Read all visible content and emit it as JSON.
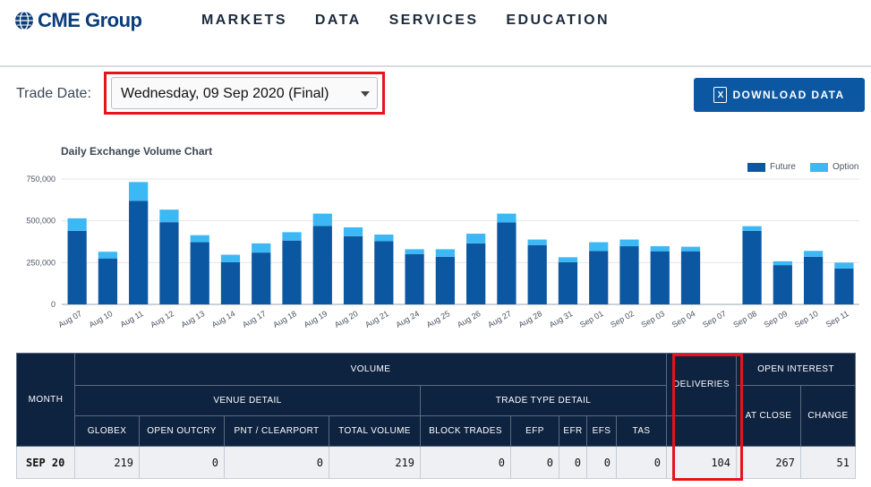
{
  "header": {
    "brand": "CME Group",
    "nav": [
      "MARKETS",
      "DATA",
      "SERVICES",
      "EDUCATION"
    ]
  },
  "trade_date": {
    "label": "Trade Date:",
    "selected": "Wednesday, 09 Sep 2020 (Final)"
  },
  "download": {
    "label": "DOWNLOAD DATA"
  },
  "colors": {
    "future": "#0c57a2",
    "option": "#3cb8f5",
    "header_bg": "#0e2340",
    "highlight": "#e3141b"
  },
  "chart_data": {
    "type": "bar",
    "title": "Daily Exchange Volume Chart",
    "stacked": true,
    "categories": [
      "Aug 07",
      "Aug 10",
      "Aug 11",
      "Aug 12",
      "Aug 13",
      "Aug 14",
      "Aug 17",
      "Aug 18",
      "Aug 19",
      "Aug 20",
      "Aug 21",
      "Aug 24",
      "Aug 25",
      "Aug 26",
      "Aug 27",
      "Aug 28",
      "Aug 31",
      "Sep 01",
      "Sep 02",
      "Sep 03",
      "Sep 04",
      "Sep 07",
      "Sep 08",
      "Sep 09",
      "Sep 10",
      "Sep 11"
    ],
    "series": [
      {
        "name": "Future",
        "values": [
          440000,
          275000,
          620000,
          492000,
          372000,
          252000,
          310000,
          382000,
          470000,
          408000,
          378000,
          300000,
          285000,
          365000,
          490000,
          355000,
          252000,
          320000,
          348000,
          318000,
          318000,
          0,
          440000,
          235000,
          285000,
          215000
        ]
      },
      {
        "name": "Option",
        "values": [
          75000,
          40000,
          112000,
          75000,
          42000,
          45000,
          55000,
          50000,
          73000,
          53000,
          40000,
          30000,
          45000,
          58000,
          53000,
          33000,
          30000,
          52000,
          40000,
          30000,
          27000,
          0,
          28000,
          23000,
          35000,
          35000
        ]
      }
    ],
    "yticks": [
      "0",
      "250,000",
      "500,000",
      "750,000"
    ],
    "ylim": [
      0,
      750000
    ],
    "legend_position": "top-right",
    "grid": true
  },
  "table": {
    "group_headers": {
      "month": "MONTH",
      "volume": "VOLUME",
      "venue_detail": "VENUE DETAIL",
      "trade_type_detail": "TRADE TYPE DETAIL",
      "deliveries": "DELIVERIES",
      "open_interest": "OPEN INTEREST"
    },
    "columns": [
      "GLOBEX",
      "OPEN OUTCRY",
      "PNT / CLEARPORT",
      "TOTAL VOLUME",
      "BLOCK TRADES",
      "EFP",
      "EFR",
      "EFS",
      "TAS",
      "AT CLOSE",
      "CHANGE"
    ],
    "row": {
      "month": "SEP 20",
      "globex": "219",
      "open_outcry": "0",
      "pnt": "0",
      "total_volume": "219",
      "block_trades": "0",
      "efp": "0",
      "efr": "0",
      "efs": "0",
      "tas": "0",
      "deliveries": "104",
      "at_close": "267",
      "change": "51"
    }
  }
}
